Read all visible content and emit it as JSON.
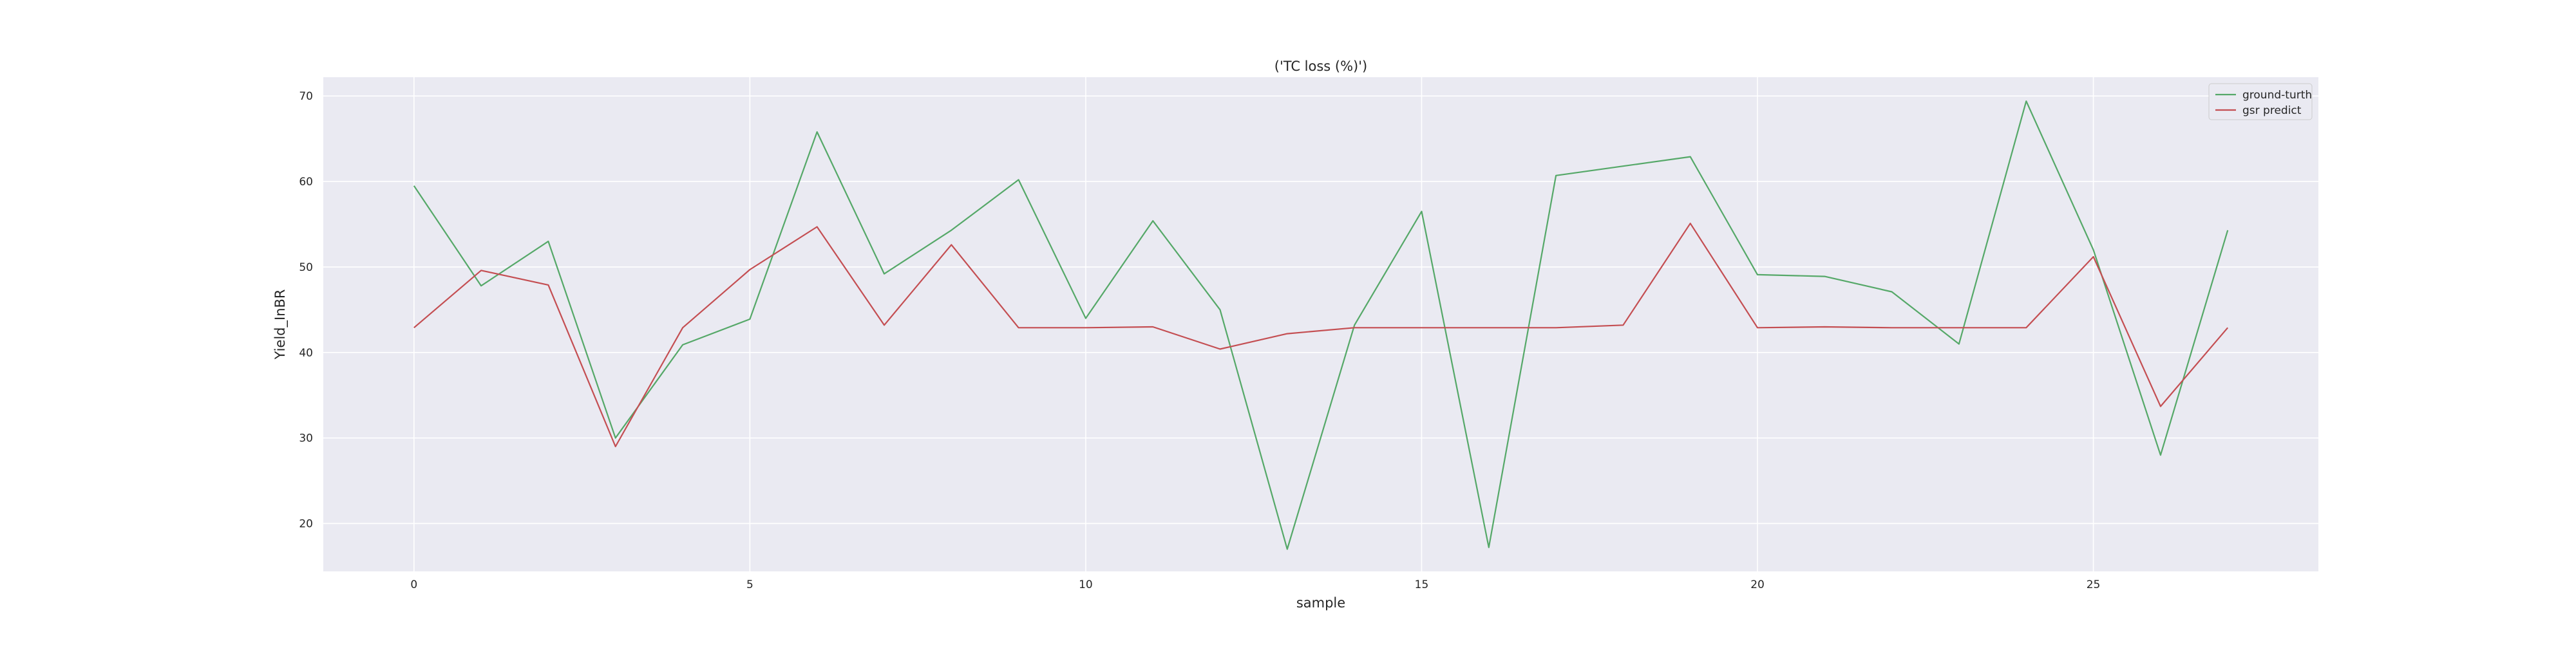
{
  "chart_data": {
    "type": "line",
    "title": "('TC loss (%)')",
    "xlabel": "sample",
    "ylabel": "Yield_InBR",
    "xlim": [
      -1.35,
      28.35
    ],
    "ylim": [
      14.4,
      72.2
    ],
    "xticks": [
      0,
      5,
      10,
      15,
      20,
      25
    ],
    "yticks": [
      20,
      30,
      40,
      50,
      60,
      70
    ],
    "grid": true,
    "legend_position": "top-right",
    "background": "#eaeaf2",
    "x": [
      0,
      1,
      2,
      3,
      4,
      5,
      6,
      7,
      8,
      9,
      10,
      11,
      12,
      13,
      14,
      15,
      16,
      17,
      18,
      19,
      20,
      21,
      22,
      23,
      24,
      25,
      26,
      27
    ],
    "series": [
      {
        "name": "ground-turth",
        "color": "#55a868",
        "values": [
          59.5,
          47.8,
          53.0,
          30.0,
          40.9,
          43.9,
          65.8,
          49.2,
          54.3,
          60.2,
          44.0,
          55.4,
          45.0,
          17.0,
          43.2,
          56.5,
          17.2,
          60.7,
          61.8,
          62.9,
          49.1,
          48.9,
          47.1,
          41.0,
          69.4,
          52.0,
          28.0,
          54.3
        ]
      },
      {
        "name": "gsr predict",
        "color": "#c44e52",
        "values": [
          42.9,
          49.6,
          47.9,
          29.0,
          42.9,
          49.7,
          54.7,
          43.2,
          52.6,
          42.9,
          42.9,
          43.0,
          40.4,
          42.2,
          42.9,
          42.9,
          42.9,
          42.9,
          43.2,
          55.1,
          42.9,
          43.0,
          42.9,
          42.9,
          42.9,
          51.2,
          33.7,
          42.9
        ]
      }
    ]
  }
}
